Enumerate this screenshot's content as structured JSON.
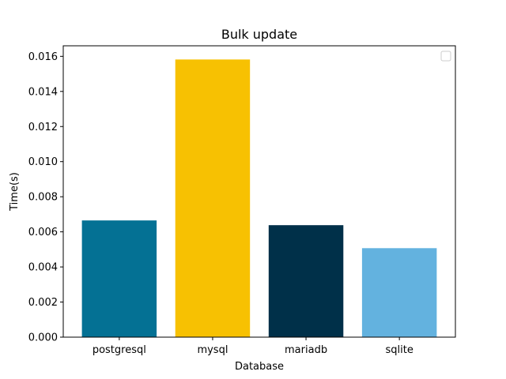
{
  "chart_data": {
    "type": "bar",
    "title": "Bulk update",
    "xlabel": "Database",
    "ylabel": "Time(s)",
    "categories": [
      "postgresql",
      "mysql",
      "mariadb",
      "sqlite"
    ],
    "values": [
      0.00665,
      0.01582,
      0.00638,
      0.00507
    ],
    "colors": [
      "#047194",
      "#f7c102",
      "#003049",
      "#63b2df"
    ],
    "ylim": [
      0,
      0.0166
    ],
    "yticks": [
      0,
      0.002,
      0.004,
      0.006,
      0.008,
      0.01,
      0.012,
      0.014,
      0.016
    ],
    "ytick_labels": [
      "0.000",
      "0.002",
      "0.004",
      "0.006",
      "0.008",
      "0.010",
      "0.012",
      "0.014",
      "0.016"
    ],
    "grid": false,
    "legend": {
      "placement": "top-right",
      "entries": []
    }
  }
}
